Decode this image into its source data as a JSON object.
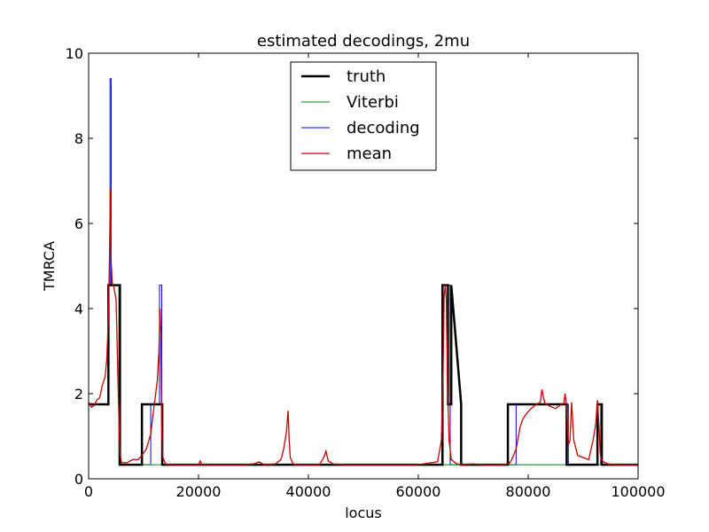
{
  "chart_data": {
    "type": "line",
    "title": "estimated decodings, 2mu",
    "xlabel": "locus",
    "ylabel": "TMRCA",
    "xlim": [
      0,
      100000
    ],
    "ylim": [
      0,
      10
    ],
    "xticks": [
      0,
      20000,
      40000,
      60000,
      80000,
      100000
    ],
    "yticks": [
      0,
      2,
      4,
      6,
      8,
      10
    ],
    "legend_position": "upper center",
    "series": [
      {
        "name": "truth",
        "color": "#000000",
        "style": "steps",
        "width": 2.5,
        "x": [
          0,
          3600,
          3600,
          5700,
          5700,
          9700,
          9700,
          13400,
          13400,
          64400,
          64400,
          65400,
          65400,
          66000,
          66000,
          67800,
          67800,
          76300,
          76300,
          87000,
          87000,
          92600,
          92600,
          93400,
          93400,
          100000
        ],
        "y": [
          1.75,
          1.75,
          4.55,
          4.55,
          0.33,
          0.33,
          1.75,
          1.75,
          0.33,
          0.33,
          4.55,
          4.55,
          1.75,
          1.75,
          4.55,
          1.75,
          0.33,
          0.33,
          1.75,
          1.75,
          0.33,
          0.33,
          1.75,
          1.75,
          0.33,
          0.33
        ]
      },
      {
        "name": "Viterbi",
        "color": "#008000",
        "style": "steps",
        "width": 1,
        "x": [
          0,
          3700,
          3700,
          5500,
          5500,
          100000
        ],
        "y": [
          1.75,
          1.75,
          4.55,
          4.55,
          0.33,
          0.33
        ]
      },
      {
        "name": "decoding",
        "color": "#0000ff",
        "style": "steps",
        "width": 1,
        "x": [
          0,
          3600,
          3600,
          3900,
          3900,
          4100,
          4100,
          5600,
          5600,
          11300,
          11300,
          12900,
          12900,
          13300,
          13300,
          64400,
          64400,
          65800,
          65800,
          77800,
          77800,
          87300,
          87300,
          92600,
          92600,
          93200,
          93200,
          100000
        ],
        "y": [
          1.75,
          1.75,
          4.55,
          4.55,
          9.4,
          9.4,
          4.55,
          4.55,
          0.33,
          0.33,
          1.75,
          1.75,
          4.55,
          4.55,
          0.33,
          0.33,
          4.55,
          4.55,
          0.33,
          0.33,
          1.75,
          1.75,
          0.33,
          0.33,
          1.75,
          1.75,
          0.33,
          0.33
        ]
      },
      {
        "name": "mean",
        "color": "#cc0000",
        "style": "line",
        "width": 1.3,
        "x": [
          0,
          500,
          1000,
          1500,
          2000,
          2500,
          3000,
          3300,
          3600,
          3800,
          3950,
          4100,
          4300,
          4600,
          5000,
          5400,
          5700,
          6000,
          7000,
          8000,
          9000,
          9700,
          10500,
          11300,
          12000,
          12500,
          12800,
          13000,
          13150,
          13300,
          13500,
          14000,
          15000,
          20000,
          20300,
          20600,
          28000,
          30000,
          31000,
          32000,
          34000,
          35000,
          35500,
          36000,
          36300,
          36500,
          36700,
          37200,
          38000,
          42000,
          42800,
          43200,
          43600,
          44500,
          47000,
          60000,
          63500,
          64200,
          64500,
          64700,
          64900,
          65100,
          65300,
          65600,
          66000,
          66500,
          67000,
          68000,
          70000,
          72000,
          75000,
          76500,
          77000,
          77800,
          78500,
          79000,
          79800,
          80500,
          81500,
          82200,
          82500,
          83000,
          84000,
          85000,
          86000,
          86500,
          86700,
          87000,
          87300,
          87600,
          87900,
          88300,
          89000,
          90000,
          91000,
          91800,
          92300,
          92600,
          92900,
          93100,
          93300,
          93700,
          94500,
          96000,
          98000,
          100000
        ],
        "y": [
          1.8,
          1.68,
          1.72,
          1.85,
          1.9,
          2.2,
          2.4,
          2.8,
          3.8,
          5.2,
          6.8,
          5.1,
          4.6,
          4.5,
          4.2,
          2.0,
          0.6,
          0.38,
          0.38,
          0.45,
          0.45,
          0.55,
          0.7,
          1.05,
          1.8,
          2.3,
          3.0,
          4.0,
          3.4,
          1.2,
          0.5,
          0.35,
          0.33,
          0.33,
          0.42,
          0.33,
          0.33,
          0.35,
          0.4,
          0.33,
          0.35,
          0.45,
          0.7,
          1.1,
          1.6,
          0.9,
          0.5,
          0.35,
          0.33,
          0.33,
          0.5,
          0.65,
          0.42,
          0.35,
          0.33,
          0.33,
          0.4,
          0.9,
          2.5,
          4.3,
          4.55,
          4.2,
          2.3,
          0.9,
          0.45,
          0.4,
          0.35,
          0.33,
          0.35,
          0.33,
          0.33,
          0.35,
          0.45,
          0.7,
          1.2,
          1.4,
          1.55,
          1.65,
          1.75,
          1.8,
          2.1,
          1.78,
          1.7,
          1.65,
          1.75,
          1.78,
          2.0,
          1.7,
          0.8,
          0.9,
          1.8,
          0.9,
          0.55,
          0.5,
          0.45,
          0.9,
          1.3,
          1.85,
          1.2,
          0.6,
          0.45,
          0.4,
          0.35,
          0.33,
          0.33,
          0.33
        ]
      }
    ]
  }
}
